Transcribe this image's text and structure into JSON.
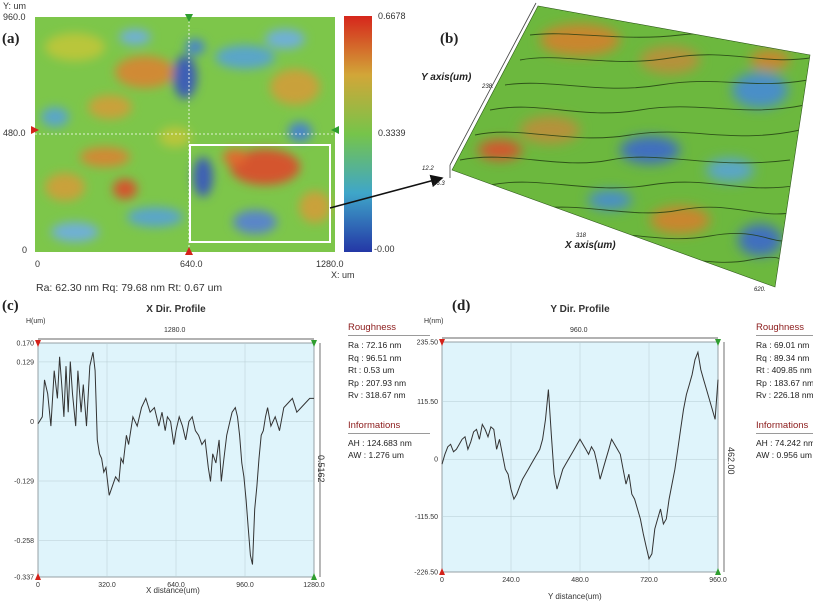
{
  "panels": {
    "a": "(a)",
    "b": "(b)",
    "c": "(c)",
    "d": "(d)"
  },
  "map2d": {
    "y_axis_title": "Y: um",
    "x_axis_title": "X: um",
    "y_ticks": [
      "960.0",
      "480.0",
      "0"
    ],
    "x_ticks": [
      "0",
      "640.0",
      "1280.0"
    ],
    "colorbar_ticks": [
      "0.6678",
      "0.3339",
      "-0.00"
    ],
    "stats": "Ra: 62.30 nm   Rq: 79.68 nm   Rt: 0.67 um"
  },
  "map3d": {
    "y_axis_label": "Y axis(um)",
    "x_axis_label": "X axis(um)",
    "tick_y_top": "238.",
    "tick_z_a": "12.2",
    "tick_z_b": "16.3",
    "tick_x_mid": "318",
    "tick_x_end": "620."
  },
  "colors": {
    "curve": "#333333",
    "plot_bg": "#dff4fb",
    "marker_red": "#d4221a",
    "marker_green": "#2f9e2f",
    "roughness_head": "#8b1a1a"
  },
  "chart_data": [
    {
      "type": "line",
      "title": "X Dir. Profile",
      "ylabel": "H(um)",
      "xlabel": "X distance(um)",
      "top_span_label": "1280.0",
      "right_span_label": "0.5162",
      "xlim": [
        0,
        1280
      ],
      "ylim": [
        -0.337,
        0.17
      ],
      "x_ticks": [
        "0",
        "320.0",
        "640.0",
        "960.0",
        "1280.0"
      ],
      "y_ticks": [
        "0.170",
        "0.129",
        "0",
        "-0.129",
        "-0.258",
        "-0.337"
      ],
      "x_tick_values": [
        0,
        320,
        640,
        960,
        1280
      ],
      "y_tick_values": [
        0.17,
        0.129,
        0,
        -0.129,
        -0.258,
        -0.337
      ],
      "series": [
        {
          "name": "X profile",
          "x": [
            0,
            20,
            30,
            45,
            60,
            75,
            90,
            100,
            110,
            120,
            130,
            140,
            150,
            160,
            175,
            185,
            200,
            210,
            225,
            240,
            255,
            265,
            275,
            285,
            295,
            305,
            315,
            330,
            345,
            360,
            375,
            385,
            395,
            410,
            420,
            440,
            460,
            480,
            500,
            520,
            540,
            560,
            575,
            590,
            600,
            615,
            630,
            640,
            655,
            670,
            685,
            700,
            715,
            730,
            745,
            760,
            775,
            790,
            800,
            810,
            825,
            840,
            850,
            860,
            875,
            890,
            900,
            915,
            925,
            935,
            945,
            955,
            965,
            975,
            985,
            995,
            1005,
            1015,
            1025,
            1035,
            1045,
            1055,
            1065,
            1080,
            1100,
            1120,
            1140,
            1160,
            1180,
            1200,
            1220,
            1240,
            1260,
            1280
          ],
          "values": [
            -0.005,
            0.01,
            0.09,
            0.06,
            -0.01,
            0.11,
            0.05,
            0.14,
            0.08,
            0.01,
            0.12,
            0.02,
            0.13,
            0.06,
            -0.01,
            0.11,
            0.02,
            0.08,
            -0.01,
            0.12,
            0.15,
            0.11,
            -0.04,
            -0.07,
            -0.08,
            -0.11,
            -0.1,
            -0.16,
            -0.14,
            -0.12,
            -0.13,
            -0.08,
            -0.09,
            -0.03,
            -0.05,
            0.01,
            -0.01,
            0.03,
            0.05,
            0.02,
            0.03,
            -0.01,
            0.02,
            -0.02,
            0.01,
            0.0,
            -0.05,
            -0.02,
            0.01,
            -0.01,
            -0.04,
            0.0,
            0.01,
            -0.02,
            -0.03,
            -0.05,
            -0.04,
            -0.1,
            -0.13,
            -0.07,
            -0.09,
            -0.04,
            -0.13,
            -0.09,
            -0.03,
            0.0,
            0.02,
            0.03,
            0.01,
            -0.03,
            -0.09,
            -0.12,
            -0.17,
            -0.23,
            -0.29,
            -0.31,
            -0.19,
            -0.14,
            -0.08,
            -0.03,
            -0.02,
            0.01,
            0.03,
            -0.01,
            0.01,
            -0.02,
            0.03,
            0.04,
            0.05,
            0.02,
            0.03,
            0.04,
            0.05,
            0.05
          ]
        }
      ]
    },
    {
      "type": "line",
      "title": "Y Dir. Profile",
      "ylabel": "H(nm)",
      "xlabel": "Y distance(um)",
      "top_span_label": "960.0",
      "right_span_label": "462.00",
      "xlim": [
        0,
        960
      ],
      "ylim": [
        -226.5,
        235.5
      ],
      "x_ticks": [
        "0",
        "240.0",
        "480.0",
        "720.0",
        "960.0"
      ],
      "y_ticks": [
        "235.50",
        "115.50",
        "0",
        "-115.50",
        "-226.50"
      ],
      "x_tick_values": [
        0,
        240,
        480,
        720,
        960
      ],
      "y_tick_values": [
        235.5,
        115.5,
        0,
        -115.5,
        -226.5
      ],
      "series": [
        {
          "name": "Y profile",
          "x": [
            0,
            10,
            20,
            30,
            40,
            50,
            60,
            70,
            80,
            90,
            100,
            110,
            120,
            130,
            140,
            150,
            160,
            170,
            180,
            190,
            200,
            210,
            220,
            230,
            240,
            250,
            260,
            270,
            280,
            290,
            300,
            310,
            320,
            330,
            340,
            350,
            360,
            370,
            380,
            390,
            400,
            410,
            420,
            430,
            440,
            450,
            460,
            470,
            480,
            490,
            500,
            510,
            520,
            530,
            540,
            550,
            560,
            570,
            580,
            590,
            600,
            610,
            620,
            630,
            640,
            650,
            660,
            670,
            680,
            690,
            700,
            710,
            720,
            730,
            740,
            750,
            760,
            770,
            780,
            790,
            800,
            810,
            820,
            830,
            840,
            850,
            860,
            870,
            880,
            890,
            900,
            910,
            920,
            930,
            940,
            950,
            960
          ],
          "values": [
            -10,
            10,
            25,
            30,
            15,
            20,
            30,
            40,
            45,
            20,
            35,
            55,
            60,
            40,
            70,
            60,
            45,
            65,
            60,
            20,
            40,
            10,
            -20,
            -30,
            -60,
            -80,
            -70,
            -55,
            -40,
            -30,
            -20,
            -10,
            0,
            10,
            20,
            40,
            80,
            140,
            50,
            -30,
            -60,
            -40,
            -20,
            -10,
            0,
            10,
            20,
            30,
            40,
            30,
            20,
            10,
            25,
            15,
            -10,
            -40,
            -20,
            0,
            20,
            40,
            30,
            20,
            10,
            -20,
            -50,
            -30,
            -70,
            -80,
            -100,
            -120,
            -150,
            -175,
            -200,
            -190,
            -140,
            -120,
            -100,
            -130,
            -120,
            -80,
            -50,
            -20,
            20,
            60,
            100,
            130,
            150,
            170,
            200,
            215,
            180,
            160,
            140,
            120,
            100,
            80,
            160
          ]
        }
      ]
    }
  ],
  "profile_c": {
    "roughness_title": "Roughness",
    "roughness": [
      "Ra : 72.16 nm",
      "Rq : 96.51 nm",
      "Rt : 0.53 um",
      "Rp : 207.93 nm",
      "Rv : 318.67 nm"
    ],
    "info_title": "Informations",
    "info": [
      "AH : 124.683 nm",
      "AW : 1.276 um"
    ]
  },
  "profile_d": {
    "roughness_title": "Roughness",
    "roughness": [
      "Ra : 69.01 nm",
      "Rq : 89.34 nm",
      "Rt : 409.85 nm",
      "Rp : 183.67 nm",
      "Rv : 226.18 nm"
    ],
    "info_title": "Informations",
    "info": [
      "AH : 74.242 nm",
      "AW : 0.956 um"
    ]
  }
}
